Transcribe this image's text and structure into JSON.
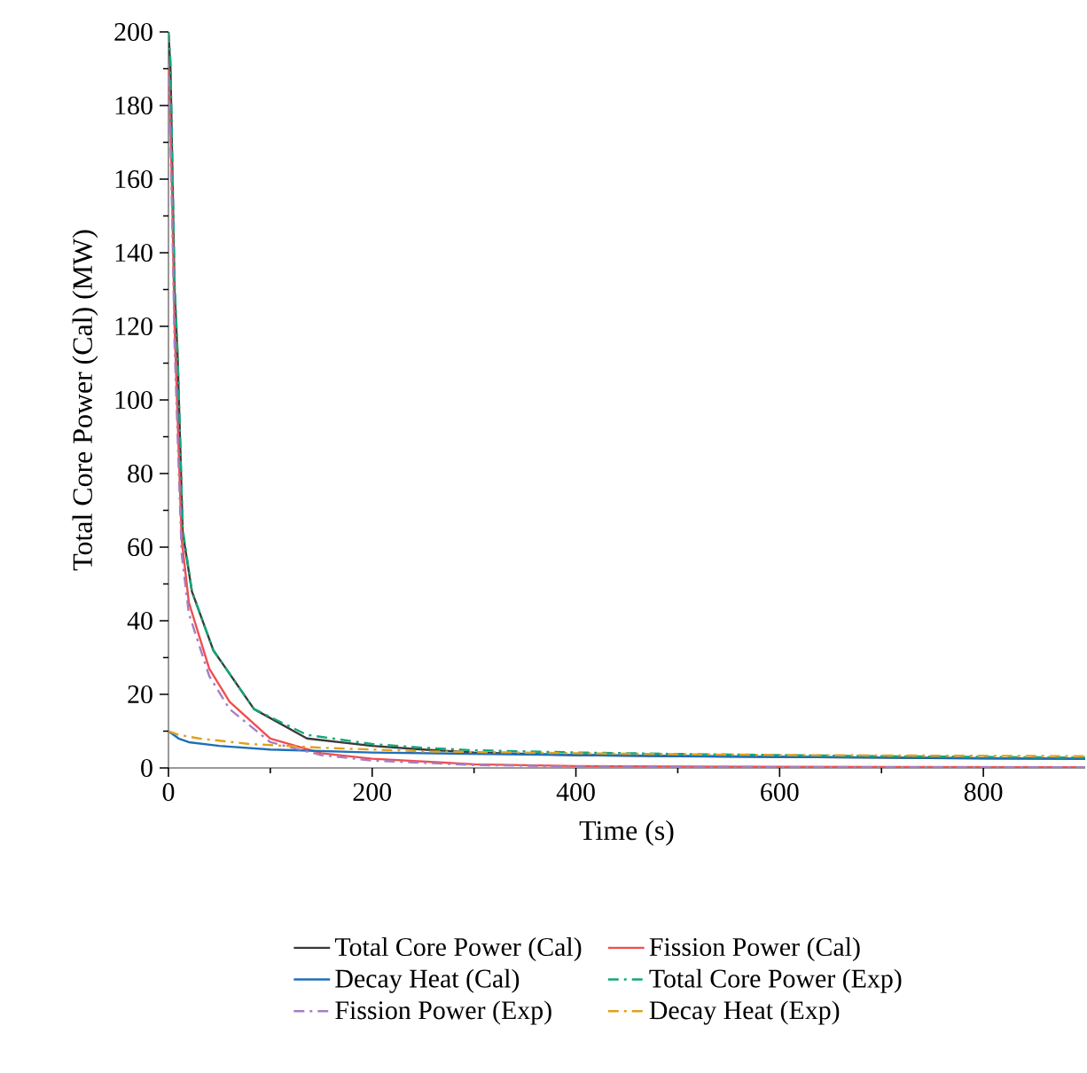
{
  "chart_data": {
    "type": "line",
    "xlabel": "Time (s)",
    "ylabel": "Total Core Power (Cal) (MW)",
    "xlim": [
      0,
      900
    ],
    "ylim": [
      0,
      200
    ],
    "xticks": [
      0,
      200,
      400,
      600,
      800
    ],
    "yticks": [
      0,
      20,
      40,
      60,
      80,
      100,
      120,
      140,
      160,
      180,
      200
    ],
    "grid": false,
    "legend": "bottom",
    "series": [
      {
        "name": "Total Core Power (Cal)",
        "color": "#3a3a3a",
        "line_style": "solid",
        "x": [
          0,
          2,
          4,
          6,
          9,
          14,
          23,
          44,
          84,
          136,
          200,
          250,
          300,
          400,
          500,
          600,
          700,
          800,
          900
        ],
        "values": [
          200,
          190,
          160,
          130,
          112,
          64,
          48,
          32,
          16,
          8,
          6,
          5,
          4.2,
          3.5,
          3.2,
          3,
          2.8,
          2.6,
          2.5
        ]
      },
      {
        "name": "Fission Power (Cal)",
        "color": "#f04e4e",
        "line_style": "solid",
        "x": [
          0,
          2,
          4,
          6,
          9,
          13,
          20,
          40,
          60,
          100,
          150,
          200,
          300,
          400,
          600,
          900
        ],
        "values": [
          190,
          175,
          150,
          120,
          95,
          62,
          45,
          27,
          18,
          8,
          4,
          2.5,
          1,
          0.5,
          0.3,
          0.2
        ]
      },
      {
        "name": "Decay Heat (Cal)",
        "color": "#1f6fb8",
        "line_style": "solid",
        "x": [
          0,
          10,
          20,
          50,
          100,
          200,
          400,
          600,
          900
        ],
        "values": [
          10,
          8,
          7,
          6,
          5,
          4.2,
          3.5,
          3,
          2.5
        ]
      },
      {
        "name": "Total Core Power (Exp)",
        "color": "#10a878",
        "line_style": "dashdot",
        "x": [
          0,
          2,
          4,
          6,
          9,
          14,
          23,
          44,
          84,
          136,
          200,
          250,
          300,
          400,
          500,
          600,
          700,
          800,
          900
        ],
        "values": [
          200,
          192,
          162,
          132,
          113,
          65,
          48,
          32,
          16,
          9,
          6.5,
          5.5,
          4.8,
          4.2,
          3.8,
          3.5,
          3.2,
          3,
          2.8
        ]
      },
      {
        "name": "Fission Power (Exp)",
        "color": "#a77dc2",
        "line_style": "dashdot",
        "x": [
          0,
          2,
          4,
          6,
          9,
          13,
          20,
          40,
          60,
          100,
          150,
          200,
          300,
          400,
          600,
          900
        ],
        "values": [
          188,
          170,
          145,
          115,
          90,
          58,
          42,
          25,
          16,
          7,
          3.5,
          2,
          0.8,
          0.4,
          0.2,
          0.2
        ]
      },
      {
        "name": "Decay Heat (Exp)",
        "color": "#e0a020",
        "line_style": "dashdot",
        "x": [
          0,
          10,
          30,
          80,
          150,
          250,
          400,
          600,
          900
        ],
        "values": [
          10,
          9,
          8,
          6.5,
          5.5,
          4.5,
          4,
          3.5,
          3.2
        ]
      }
    ]
  }
}
